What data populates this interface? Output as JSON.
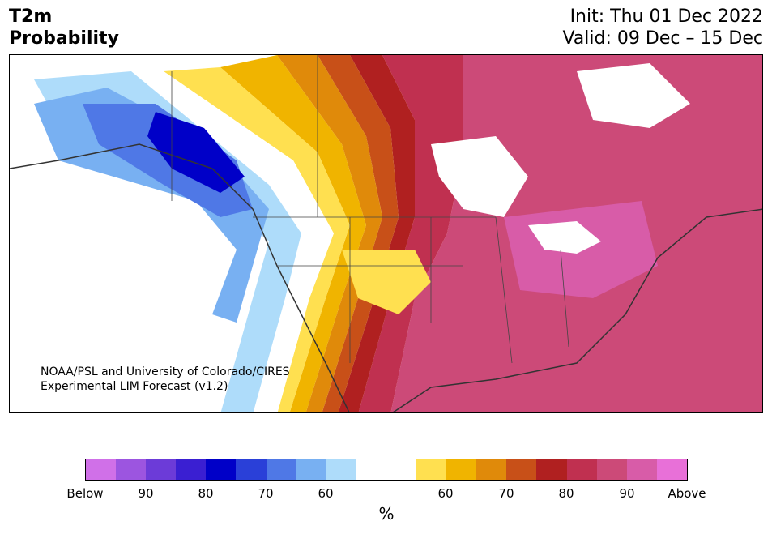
{
  "header": {
    "variable": "T2m",
    "subtitle": "Probability",
    "init": "Init: Thu 01 Dec 2022",
    "valid": "Valid: 09 Dec – 15 Dec"
  },
  "credit": {
    "line1": "NOAA/PSL and University of Colorado/CIRES",
    "line2": "Experimental LIM Forecast (v1.2)"
  },
  "colorbar": {
    "unit": "%",
    "colors": [
      "#d070e8",
      "#9c55e0",
      "#6c3bd8",
      "#3a1fd2",
      "#0000c8",
      "#2a40d8",
      "#4f78e6",
      "#78b0f2",
      "#aedcfa",
      "#ffffff",
      "#ffffff",
      "#ffe050",
      "#f0b400",
      "#e08a0a",
      "#c85018",
      "#b02020",
      "#c03050",
      "#cc4a78",
      "#d85ca8",
      "#e870d8"
    ],
    "tick_labels": [
      "Below",
      "90",
      "80",
      "70",
      "60",
      "60",
      "70",
      "80",
      "90",
      "Above"
    ]
  },
  "map": {
    "region": "North America",
    "colors": {
      "blue_light": "#aedcfa",
      "blue_mid": "#78b0f2",
      "blue": "#4f78e6",
      "blue_dark": "#0000c8",
      "yellow": "#ffe050",
      "gold": "#f0b400",
      "orange": "#e08a0a",
      "burnt": "#c85018",
      "red": "#b02020",
      "crimson": "#c03050",
      "rose": "#cc4a78",
      "pink": "#d85ca8"
    }
  }
}
